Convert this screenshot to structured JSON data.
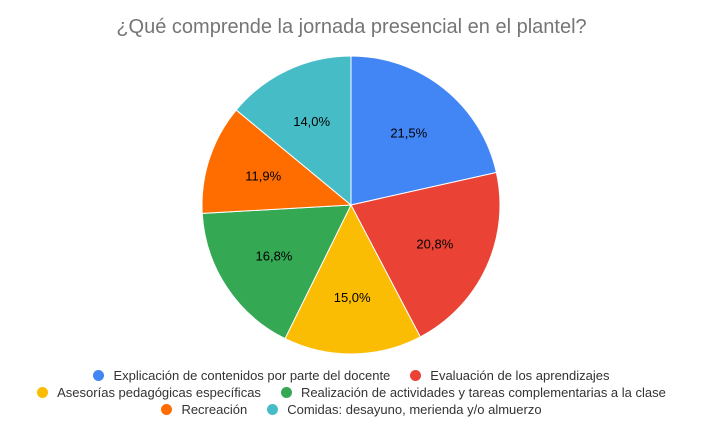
{
  "chart_data": {
    "type": "pie",
    "title": "¿Qué comprende la jornada presencial en el plantel?",
    "legend_position": "bottom",
    "slices": [
      {
        "label": "Explicación de contenidos por parte del docente",
        "value": 21.5,
        "display": "21,5%",
        "color": "#4285F4"
      },
      {
        "label": "Evaluación de los aprendizajes",
        "value": 20.8,
        "display": "20,8%",
        "color": "#EA4335"
      },
      {
        "label": "Asesorías pedagógicas específicas",
        "value": 15.0,
        "display": "15,0%",
        "color": "#FBBC04"
      },
      {
        "label": "Realización de actividades y tareas complementarias a la clase",
        "value": 16.8,
        "display": "16,8%",
        "color": "#34A853"
      },
      {
        "label": "Recreación",
        "value": 11.9,
        "display": "11,9%",
        "color": "#FF6D01"
      },
      {
        "label": "Comidas: desayuno, merienda y/o almuerzo",
        "value": 14.0,
        "display": "14,0%",
        "color": "#46BDC6"
      }
    ]
  }
}
